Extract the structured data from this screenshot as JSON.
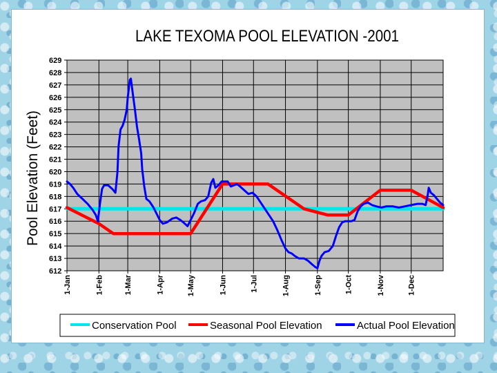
{
  "chart_data": {
    "type": "line",
    "title": "LAKE TEXOMA POOL ELEVATION -2001",
    "ylabel": "Pool Elevation  (Feet)",
    "xlabel": "",
    "ylim": [
      612,
      629
    ],
    "yticks": [
      629,
      628,
      627,
      626,
      625,
      624,
      623,
      622,
      621,
      620,
      619,
      618,
      617,
      616,
      615,
      614,
      613,
      612
    ],
    "xlim": [
      0,
      365
    ],
    "xticks": [
      {
        "label": "1-Jan",
        "day": 0
      },
      {
        "label": "1-Feb",
        "day": 31
      },
      {
        "label": "1-Mar",
        "day": 59
      },
      {
        "label": "1-Apr",
        "day": 90
      },
      {
        "label": "1-May",
        "day": 120
      },
      {
        "label": "1-Jun",
        "day": 151
      },
      {
        "label": "1-Jul",
        "day": 181
      },
      {
        "label": "1-Aug",
        "day": 212
      },
      {
        "label": "1-Sep",
        "day": 243
      },
      {
        "label": "1-Oct",
        "day": 273
      },
      {
        "label": "1-Nov",
        "day": 304
      },
      {
        "label": "1-Dec",
        "day": 334
      }
    ],
    "grid": true,
    "legend_position": "bottom",
    "series": [
      {
        "name": "Conservation Pool",
        "color": "#00e5ee",
        "points": [
          [
            0,
            617
          ],
          [
            365,
            617
          ]
        ]
      },
      {
        "name": "Seasonal Pool Elevation",
        "color": "#ff0000",
        "points": [
          [
            0,
            617.1
          ],
          [
            31,
            615.8
          ],
          [
            45,
            615
          ],
          [
            120,
            615
          ],
          [
            151,
            619
          ],
          [
            195,
            619
          ],
          [
            230,
            617
          ],
          [
            253,
            616.5
          ],
          [
            273,
            616.5
          ],
          [
            304,
            618.5
          ],
          [
            334,
            618.5
          ],
          [
            365,
            617.1
          ]
        ]
      },
      {
        "name": "Actual Pool Elevation",
        "color": "#0000ff",
        "points": [
          [
            0,
            619.2
          ],
          [
            3,
            619
          ],
          [
            6,
            618.7
          ],
          [
            10,
            618.2
          ],
          [
            15,
            617.8
          ],
          [
            20,
            617.4
          ],
          [
            25,
            616.9
          ],
          [
            28,
            616.5
          ],
          [
            30,
            616
          ],
          [
            32,
            617.4
          ],
          [
            34,
            618.6
          ],
          [
            36,
            618.9
          ],
          [
            40,
            618.9
          ],
          [
            44,
            618.6
          ],
          [
            47,
            618.3
          ],
          [
            49,
            620
          ],
          [
            50,
            622
          ],
          [
            52,
            623.4
          ],
          [
            54,
            623.7
          ],
          [
            56,
            624.2
          ],
          [
            58,
            625
          ],
          [
            59,
            626
          ],
          [
            61,
            627.4
          ],
          [
            62,
            627.5
          ],
          [
            64,
            626.2
          ],
          [
            66,
            625
          ],
          [
            68,
            623.6
          ],
          [
            70,
            622.6
          ],
          [
            72,
            621.5
          ],
          [
            73,
            620.2
          ],
          [
            75,
            618.8
          ],
          [
            77,
            617.8
          ],
          [
            80,
            617.6
          ],
          [
            84,
            617.1
          ],
          [
            87,
            616.6
          ],
          [
            90,
            616.1
          ],
          [
            93,
            615.8
          ],
          [
            97,
            615.9
          ],
          [
            102,
            616.2
          ],
          [
            106,
            616.3
          ],
          [
            110,
            616.1
          ],
          [
            113,
            615.9
          ],
          [
            117,
            615.6
          ],
          [
            120,
            616.1
          ],
          [
            123,
            616.6
          ],
          [
            127,
            617.4
          ],
          [
            130,
            617.6
          ],
          [
            134,
            617.7
          ],
          [
            137,
            618
          ],
          [
            140,
            619.1
          ],
          [
            142,
            619.4
          ],
          [
            144,
            618.7
          ],
          [
            147,
            618.9
          ],
          [
            150,
            619.2
          ],
          [
            153,
            619.2
          ],
          [
            156,
            619.2
          ],
          [
            159,
            618.8
          ],
          [
            162,
            618.9
          ],
          [
            165,
            619
          ],
          [
            168,
            618.8
          ],
          [
            172,
            618.5
          ],
          [
            176,
            618.2
          ],
          [
            180,
            618.3
          ],
          [
            184,
            618
          ],
          [
            188,
            617.5
          ],
          [
            192,
            617
          ],
          [
            196,
            616.5
          ],
          [
            200,
            616
          ],
          [
            204,
            615.3
          ],
          [
            208,
            614.5
          ],
          [
            212,
            613.8
          ],
          [
            215,
            613.5
          ],
          [
            218,
            613.4
          ],
          [
            221,
            613.2
          ],
          [
            225,
            613
          ],
          [
            230,
            613
          ],
          [
            234,
            612.8
          ],
          [
            238,
            612.5
          ],
          [
            241,
            612.3
          ],
          [
            243,
            612.2
          ],
          [
            245,
            612.8
          ],
          [
            247,
            613.2
          ],
          [
            250,
            613.5
          ],
          [
            254,
            613.6
          ],
          [
            258,
            614
          ],
          [
            261,
            614.8
          ],
          [
            264,
            615.5
          ],
          [
            267,
            615.9
          ],
          [
            270,
            616
          ],
          [
            273,
            616
          ],
          [
            276,
            616
          ],
          [
            279,
            616.1
          ],
          [
            282,
            616.8
          ],
          [
            285,
            617.2
          ],
          [
            288,
            617.4
          ],
          [
            292,
            617.5
          ],
          [
            296,
            617.3
          ],
          [
            300,
            617.2
          ],
          [
            305,
            617.1
          ],
          [
            310,
            617.2
          ],
          [
            316,
            617.2
          ],
          [
            322,
            617.1
          ],
          [
            328,
            617.2
          ],
          [
            334,
            617.3
          ],
          [
            340,
            617.4
          ],
          [
            345,
            617.4
          ],
          [
            348,
            617.3
          ],
          [
            350,
            618.1
          ],
          [
            351,
            618.7
          ],
          [
            353,
            618.3
          ],
          [
            356,
            618.1
          ],
          [
            359,
            617.8
          ],
          [
            362,
            617.5
          ],
          [
            365,
            617.3
          ]
        ]
      }
    ]
  }
}
